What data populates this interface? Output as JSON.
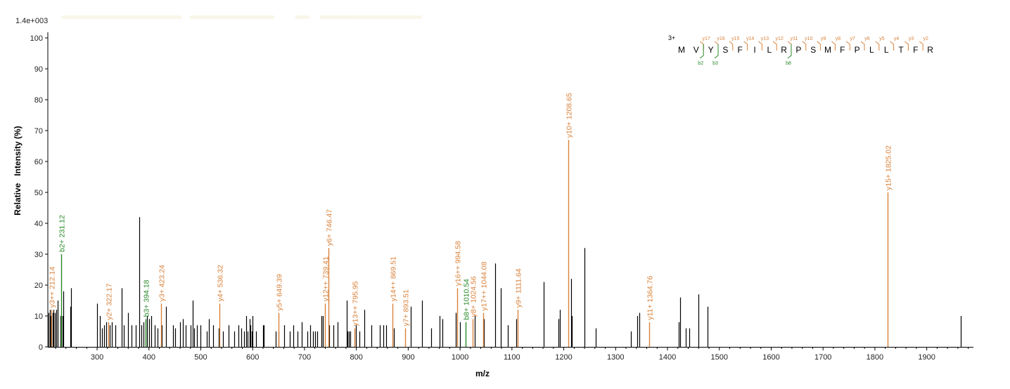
{
  "chart_data": {
    "type": "bar",
    "scale_label": "1.4e+003",
    "xlabel": "m/z",
    "ylabel": "Relative   Intensity (%)",
    "xlim": [
      205,
      1990
    ],
    "ylim": [
      0,
      100
    ],
    "x_ticks": [
      300,
      400,
      500,
      600,
      700,
      800,
      900,
      1000,
      1100,
      1200,
      1300,
      1400,
      1500,
      1600,
      1700,
      1800,
      1900
    ],
    "y_ticks": [
      0,
      10,
      20,
      30,
      40,
      50,
      60,
      70,
      80,
      90,
      100
    ],
    "grid": false,
    "colors": {
      "unassigned": "#000000",
      "y_ion": "#d9823b",
      "b_ion": "#2a8a2a",
      "axis": "#000000"
    },
    "annotated_peaks": [
      {
        "mz": 212.14,
        "intensity": 12,
        "ion": "y",
        "label": "y3++ 212.14"
      },
      {
        "mz": 231.12,
        "intensity": 30,
        "ion": "b",
        "label": "b2+ 231.12"
      },
      {
        "mz": 322.17,
        "intensity": 8,
        "ion": "y",
        "label": "y2+ 322.17"
      },
      {
        "mz": 394.18,
        "intensity": 9,
        "ion": "b",
        "label": "b3+ 394.18"
      },
      {
        "mz": 423.24,
        "intensity": 14,
        "ion": "y",
        "label": "y3+ 423.24"
      },
      {
        "mz": 536.32,
        "intensity": 14,
        "ion": "y",
        "label": "y4+ 536.32"
      },
      {
        "mz": 649.39,
        "intensity": 11,
        "ion": "y",
        "label": "y5+ 649.39"
      },
      {
        "mz": 739.41,
        "intensity": 14,
        "ion": "y",
        "label": "y12++ 739.41"
      },
      {
        "mz": 746.47,
        "intensity": 32,
        "ion": "y",
        "label": "y6+ 746.47"
      },
      {
        "mz": 795.95,
        "intensity": 6,
        "ion": "y",
        "label": "y13++ 795.95"
      },
      {
        "mz": 869.51,
        "intensity": 14,
        "ion": "y",
        "label": "y14++ 869.51"
      },
      {
        "mz": 893.51,
        "intensity": 6,
        "ion": "y",
        "label": "y7+ 893.51"
      },
      {
        "mz": 994.58,
        "intensity": 19,
        "ion": "y",
        "label": "y16++ 994.58"
      },
      {
        "mz": 1010.54,
        "intensity": 8,
        "ion": "b",
        "label": "b8+ 1010.54"
      },
      {
        "mz": 1024.56,
        "intensity": 9,
        "ion": "y",
        "label": "y8+ 1024.56"
      },
      {
        "mz": 1044.08,
        "intensity": 11,
        "ion": "y",
        "label": "y17++ 1044.08"
      },
      {
        "mz": 1111.64,
        "intensity": 12,
        "ion": "y",
        "label": "y9+ 1111.64"
      },
      {
        "mz": 1208.65,
        "intensity": 67,
        "ion": "y",
        "label": "y10+ 1208.65"
      },
      {
        "mz": 1364.76,
        "intensity": 8,
        "ion": "y",
        "label": "y11+ 1364.76"
      },
      {
        "mz": 1825.02,
        "intensity": 50,
        "ion": "y",
        "label": "y15+ 1825.02"
      }
    ],
    "peaks": [
      [
        207,
        11
      ],
      [
        209,
        12
      ],
      [
        211,
        10
      ],
      [
        214,
        11
      ],
      [
        216,
        12
      ],
      [
        219,
        11
      ],
      [
        221,
        12
      ],
      [
        224,
        15
      ],
      [
        229,
        10
      ],
      [
        233,
        10
      ],
      [
        235,
        18
      ],
      [
        248,
        13
      ],
      [
        250,
        19
      ],
      [
        300,
        14
      ],
      [
        306,
        10
      ],
      [
        310,
        6
      ],
      [
        314,
        7
      ],
      [
        317,
        8
      ],
      [
        325,
        7
      ],
      [
        329,
        8
      ],
      [
        335,
        7
      ],
      [
        348,
        19
      ],
      [
        352,
        7
      ],
      [
        360,
        11
      ],
      [
        366,
        7
      ],
      [
        374,
        7
      ],
      [
        381,
        42
      ],
      [
        385,
        7
      ],
      [
        390,
        8
      ],
      [
        396,
        10
      ],
      [
        400,
        9
      ],
      [
        405,
        10
      ],
      [
        411,
        7
      ],
      [
        416,
        6
      ],
      [
        425,
        7
      ],
      [
        433,
        13
      ],
      [
        446,
        7
      ],
      [
        451,
        6
      ],
      [
        460,
        8
      ],
      [
        465,
        9
      ],
      [
        471,
        7
      ],
      [
        480,
        7
      ],
      [
        484,
        15
      ],
      [
        487,
        6
      ],
      [
        493,
        7
      ],
      [
        500,
        7
      ],
      [
        512,
        5
      ],
      [
        516,
        9
      ],
      [
        524,
        7
      ],
      [
        535,
        6
      ],
      [
        543,
        5
      ],
      [
        553,
        7
      ],
      [
        565,
        5
      ],
      [
        572,
        7
      ],
      [
        578,
        6
      ],
      [
        583,
        5
      ],
      [
        587,
        10
      ],
      [
        590,
        5
      ],
      [
        594,
        9
      ],
      [
        596,
        7
      ],
      [
        598,
        5
      ],
      [
        600,
        10
      ],
      [
        606,
        5
      ],
      [
        620,
        7
      ],
      [
        622,
        7
      ],
      [
        645,
        5
      ],
      [
        650,
        5
      ],
      [
        661,
        7
      ],
      [
        671,
        5
      ],
      [
        678,
        7
      ],
      [
        686,
        5
      ],
      [
        694,
        8
      ],
      [
        706,
        5
      ],
      [
        711,
        7
      ],
      [
        716,
        5
      ],
      [
        720,
        5
      ],
      [
        725,
        5
      ],
      [
        733,
        10
      ],
      [
        736,
        10
      ],
      [
        748,
        7
      ],
      [
        756,
        7
      ],
      [
        764,
        8
      ],
      [
        781,
        15
      ],
      [
        783,
        5
      ],
      [
        786,
        5
      ],
      [
        788,
        5
      ],
      [
        799,
        7
      ],
      [
        806,
        5
      ],
      [
        816,
        12
      ],
      [
        829,
        7
      ],
      [
        845,
        7
      ],
      [
        852,
        7
      ],
      [
        857,
        7
      ],
      [
        873,
        6
      ],
      [
        905,
        13
      ],
      [
        927,
        15
      ],
      [
        944,
        6
      ],
      [
        960,
        10
      ],
      [
        966,
        9
      ],
      [
        992,
        11
      ],
      [
        1000,
        8
      ],
      [
        1029,
        10
      ],
      [
        1046,
        9
      ],
      [
        1068,
        27
      ],
      [
        1078,
        19
      ],
      [
        1092,
        7
      ],
      [
        1108,
        9
      ],
      [
        1161,
        21
      ],
      [
        1190,
        9
      ],
      [
        1193,
        12
      ],
      [
        1214,
        22
      ],
      [
        1216,
        10
      ],
      [
        1240,
        32
      ],
      [
        1262,
        6
      ],
      [
        1330,
        5
      ],
      [
        1342,
        10
      ],
      [
        1346,
        11
      ],
      [
        1422,
        8
      ],
      [
        1424,
        16
      ],
      [
        1435,
        6
      ],
      [
        1442,
        6
      ],
      [
        1459,
        17
      ],
      [
        1477,
        13
      ],
      [
        1966,
        10
      ]
    ],
    "sequence": {
      "charge": "3+",
      "residues": [
        "M",
        "V",
        "Y",
        "S",
        "F",
        "I",
        "L",
        "R",
        "P",
        "S",
        "M",
        "F",
        "P",
        "L",
        "L",
        "T",
        "F",
        "R"
      ],
      "y_ions": [
        "y17",
        "y16",
        "y15",
        "y14",
        "y13",
        "y12",
        "y11",
        "y10",
        "y9",
        "y8",
        "y7",
        "y6",
        "y5",
        "y4",
        "y3",
        "y2"
      ],
      "b_ions": [
        "b2",
        "b3",
        "b8"
      ]
    }
  }
}
